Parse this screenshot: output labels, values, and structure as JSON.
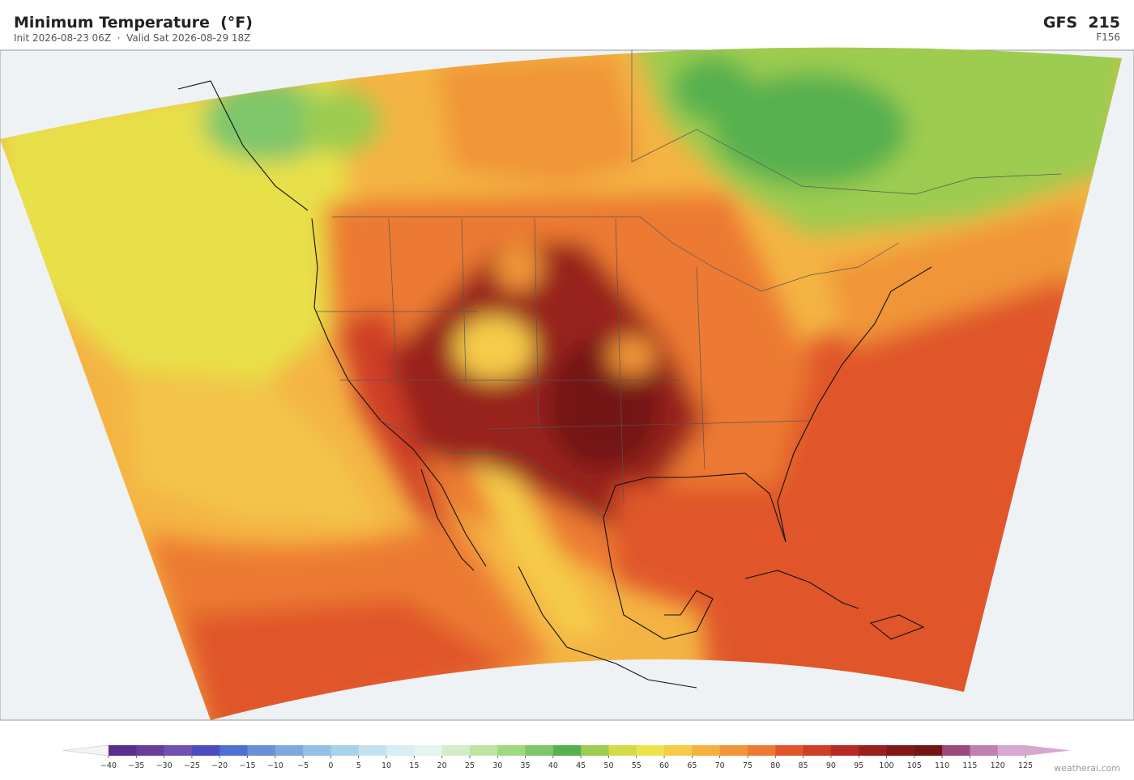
{
  "header": {
    "title": "Minimum Temperature  (°F)",
    "subtitle": "Init 2026-08-23 06Z  ·  Valid Sat 2026-08-29 18Z",
    "model": "GFS  215",
    "forecast_hour": "F156"
  },
  "colorbar": {
    "ticks": [
      {
        "value": -40,
        "label": "−40"
      },
      {
        "value": -35,
        "label": "−35"
      },
      {
        "value": -30,
        "label": "−30"
      },
      {
        "value": -25,
        "label": "−25"
      },
      {
        "value": -20,
        "label": "−20"
      },
      {
        "value": -15,
        "label": "−15"
      },
      {
        "value": -10,
        "label": "−10"
      },
      {
        "value": -5,
        "label": "−5"
      },
      0,
      5,
      10,
      15,
      20,
      25,
      30,
      35,
      40,
      45,
      50,
      55,
      60,
      65,
      70,
      75,
      80,
      85,
      90,
      95,
      100,
      105,
      110,
      115,
      120,
      125
    ],
    "colors": [
      "#5b2d8e",
      "#6a3d9a",
      "#7050b0",
      "#4c4cc0",
      "#5070d0",
      "#6a90d8",
      "#7fa8dd",
      "#95c0e5",
      "#a8d2ea",
      "#c2e2f0",
      "#d8eef4",
      "#e6f4ee",
      "#d5ecc8",
      "#bde3a0",
      "#a0d880",
      "#7ec66a",
      "#56b050",
      "#9ccc50",
      "#d3dc48",
      "#ece44a",
      "#f5cc48",
      "#f4b040",
      "#f09538",
      "#ec7a32",
      "#e0562a",
      "#cf3e26",
      "#b52a22",
      "#98201e",
      "#831818",
      "#741515",
      "#9a4a7a",
      "#c080b0",
      "#d6a8d0"
    ],
    "under_color": "#f4f4f8",
    "over_color": "#d6a8d0"
  },
  "footer": {
    "credit": "weatherai.com"
  }
}
